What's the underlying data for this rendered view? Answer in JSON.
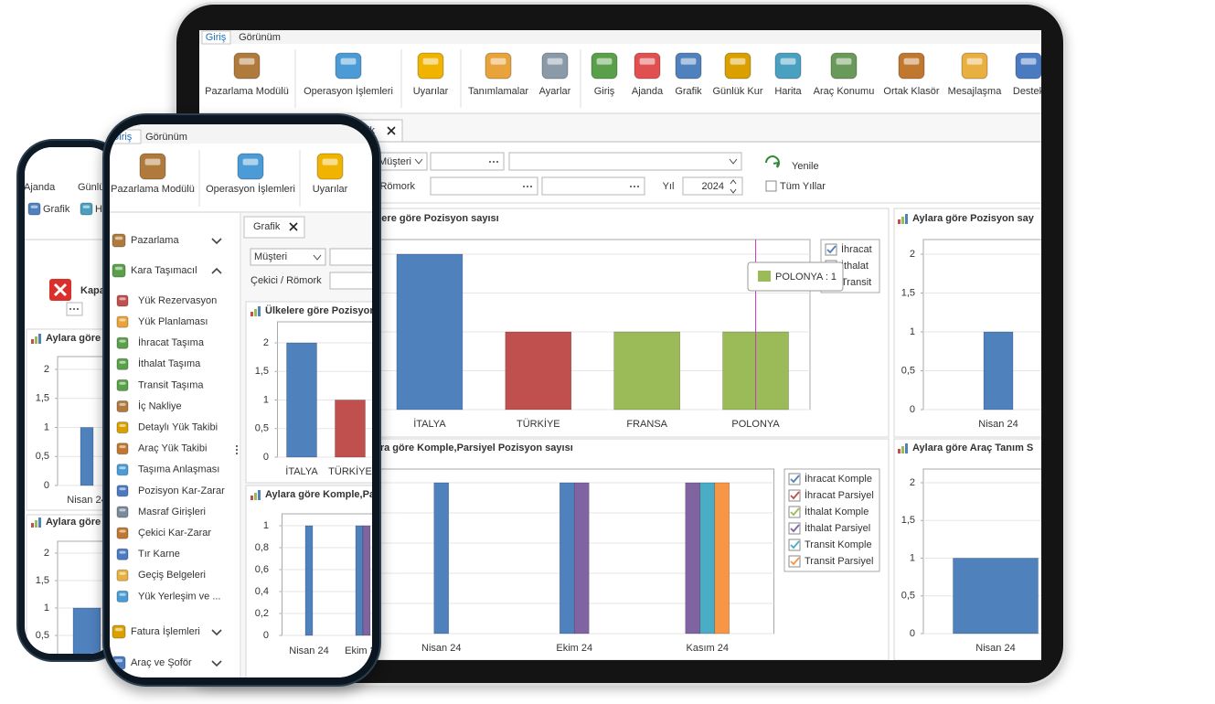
{
  "tablet": {
    "tabs": [
      "Giriş",
      "Görünüm"
    ],
    "ribbon": [
      "Pazarlama Modülü",
      "Operasyon İşlemleri",
      "Uyarılar",
      "Tanımlamalar",
      "Ayarlar",
      "Giriş",
      "Ajanda",
      "Grafik",
      "Günlük Kur",
      "Harita",
      "Araç Konumu",
      "Ortak Klasör",
      "Mesajlaşma",
      "Destek"
    ],
    "document_tab": "Grafik",
    "filters": {
      "customer": "Müşteri",
      "tractor": "Çekici / Römork",
      "refresh": "Yenile",
      "year_label": "Yıl",
      "year": 2024,
      "all_years": "Tüm Yıllar"
    },
    "charts": [
      {
        "type": "bar",
        "title": "Ülkelere göre Pozisyon sayısı",
        "categories": [
          "İTALYA",
          "TÜRKİYE",
          "FRANSA",
          "POLONYA"
        ],
        "series": [
          {
            "name": "İhracat",
            "color": "#4f81bd",
            "values": [
              2,
              null,
              null,
              null
            ]
          },
          {
            "name": "İthalat",
            "color": "#c0504d",
            "values": [
              null,
              1,
              null,
              null
            ]
          },
          {
            "name": "Transit",
            "color": "#9bbb59",
            "values": [
              null,
              null,
              1,
              1
            ]
          }
        ],
        "ylim": [
          0,
          2
        ],
        "yticks": [
          0,
          {
            "value": 0.5,
            "label": "0,5"
          },
          1,
          {
            "value": 1.5,
            "label": "1,5"
          },
          2
        ],
        "tooltip": "POLONYA : 1"
      },
      {
        "type": "bar",
        "title": "Aylara göre Komple,Parsiyel Pozisyon sayısı",
        "categories": [
          "Nisan 24",
          "Ekim 24",
          "Kasım 24"
        ],
        "series": [
          {
            "name": "İhracat Komple",
            "color": "#4f81bd",
            "values": [
              1,
              1,
              null
            ]
          },
          {
            "name": "İhracat Parsiyel",
            "color": "#c0504d",
            "values": [
              null,
              null,
              null
            ]
          },
          {
            "name": "İthalat Komple",
            "color": "#9bbb59",
            "values": [
              null,
              null,
              null
            ]
          },
          {
            "name": "İthalat Parsiyel",
            "color": "#8064a2",
            "values": [
              null,
              1,
              1
            ]
          },
          {
            "name": "Transit Komple",
            "color": "#4bacc6",
            "values": [
              null,
              null,
              1
            ]
          },
          {
            "name": "Transit Parsiyel",
            "color": "#f79646",
            "values": [
              null,
              null,
              1
            ]
          }
        ],
        "ylim": [
          0,
          1
        ],
        "yticks": [
          0,
          {
            "value": 0.2,
            "label": "0,2"
          },
          {
            "value": 0.4,
            "label": "0,4"
          },
          {
            "value": 0.6,
            "label": "0,6"
          },
          {
            "value": 0.8,
            "label": "0,8"
          },
          1
        ]
      },
      {
        "type": "bar",
        "title": "Aylara göre Pozisyon say",
        "categories": [
          "Nisan 24"
        ],
        "values": [
          1
        ],
        "color": "#4f81bd",
        "ylim": [
          0,
          2
        ],
        "yticks": [
          0,
          {
            "value": 0.5,
            "label": "0,5"
          },
          1,
          {
            "value": 1.5,
            "label": "1,5"
          },
          2
        ]
      },
      {
        "type": "bar",
        "title": "Aylara göre Araç Tanım S",
        "categories": [
          "Nisan 24"
        ],
        "values": [
          1
        ],
        "color": "#4f81bd",
        "ylim": [
          0,
          2
        ],
        "yticks": [
          0,
          {
            "value": 0.5,
            "label": "0,5"
          },
          1,
          {
            "value": 1.5,
            "label": "1,5"
          },
          2
        ]
      }
    ]
  },
  "phone": {
    "menu": {
      "groups": [
        "Pazarlama",
        "Kara Taşımacıl",
        "Fatura İşlemleri",
        "Araç ve Şoför"
      ],
      "items": [
        "Yük Rezervasyon",
        "Yük Planlaması",
        "İhracat Taşıma",
        "İthalat Taşıma",
        "Transit Taşıma",
        "İç Nakliye",
        "Detaylı Yük Takibi",
        "Araç Yük Takibi",
        "Taşıma Anlaşması",
        "Pozisyon Kar-Zarar",
        "Masraf Girişleri",
        "Çekici Kar-Zarar",
        "Tır Karne",
        "Geçiş Belgeleri",
        "Yük Yerleşim ve ..."
      ]
    },
    "dialog": "Kapat"
  }
}
